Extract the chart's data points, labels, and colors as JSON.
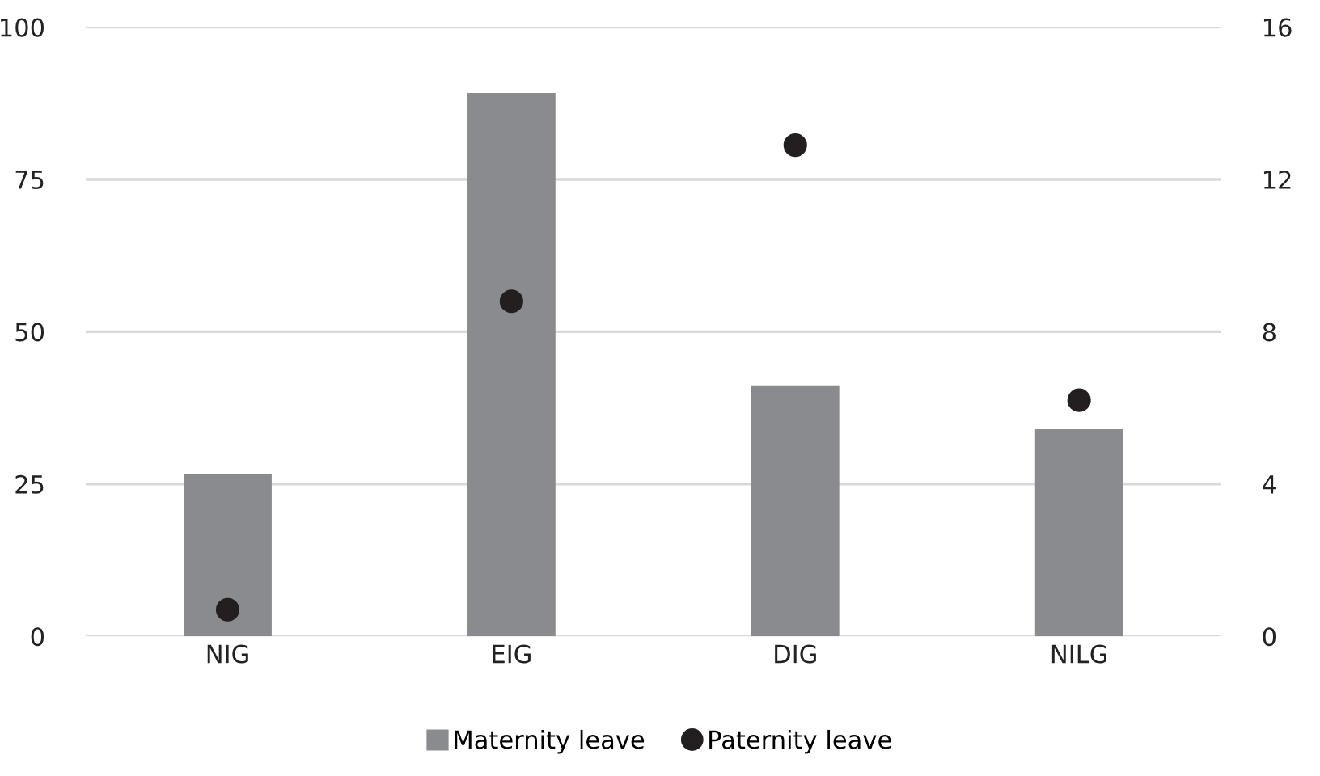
{
  "chart_data": {
    "type": "bar",
    "categories": [
      "NIG",
      "EIG",
      "DIG",
      "NILG"
    ],
    "series": [
      {
        "name": "Maternity leave",
        "color": "#8a8b8f",
        "values": [
          26.6,
          89.2,
          41.2,
          34.0
        ]
      },
      {
        "name": "Paternity leave",
        "type": "scatter",
        "axis": "y2",
        "color": "#231f20",
        "marker": "circle",
        "values": [
          0.7,
          8.8,
          12.9,
          6.2
        ]
      }
    ],
    "ylim": [
      0,
      100
    ],
    "yticks": [
      0,
      25,
      50,
      75,
      100
    ],
    "y2lim": [
      0,
      16
    ],
    "y2ticks": [
      0,
      4,
      8,
      12,
      16
    ],
    "grid": "y",
    "legend": "bottom"
  }
}
